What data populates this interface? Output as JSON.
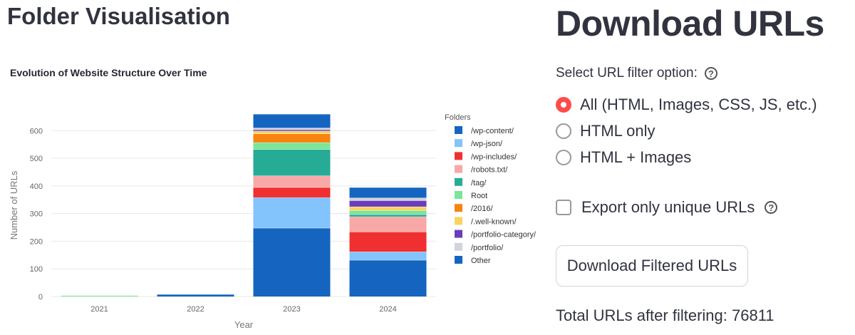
{
  "left": {
    "title": "Folder Visualisation",
    "chart_title": "Evolution of Website Structure Over Time"
  },
  "chart_data": {
    "type": "bar",
    "stacked": true,
    "title": "Evolution of Website Structure Over Time",
    "xlabel": "Year",
    "ylabel": "Number of URLs",
    "categories": [
      "2021",
      "2022",
      "2023",
      "2024"
    ],
    "ylim": [
      0,
      660
    ],
    "yticks": [
      0,
      100,
      200,
      300,
      400,
      500,
      600
    ],
    "grid": true,
    "legend_title": "Folders",
    "legend_position": "right",
    "series": [
      {
        "name": "/wp-content/",
        "color": "#1565c0",
        "values": [
          0,
          8,
          248,
          132
        ]
      },
      {
        "name": "/wp-json/",
        "color": "#82c4fb",
        "values": [
          0,
          0,
          110,
          30
        ]
      },
      {
        "name": "/wp-includes/",
        "color": "#f03030",
        "values": [
          0,
          0,
          37,
          72
        ]
      },
      {
        "name": "/robots.txt/",
        "color": "#f9a8a8",
        "values": [
          0,
          0,
          42,
          55
        ]
      },
      {
        "name": "/tag/",
        "color": "#26ab97",
        "values": [
          0,
          0,
          95,
          8
        ]
      },
      {
        "name": "Root",
        "color": "#7be59a",
        "values": [
          4,
          0,
          25,
          14
        ]
      },
      {
        "name": "/2016/",
        "color": "#f8840f",
        "values": [
          0,
          0,
          32,
          0
        ]
      },
      {
        "name": "/.well-known/",
        "color": "#f9d262",
        "values": [
          0,
          0,
          10,
          14
        ]
      },
      {
        "name": "/portfolio-category/",
        "color": "#6b3dbd",
        "values": [
          0,
          0,
          5,
          22
        ]
      },
      {
        "name": "/portfolio/",
        "color": "#d0d5dd",
        "values": [
          0,
          0,
          6,
          10
        ]
      },
      {
        "name": "Other",
        "color": "#1565c0",
        "values": [
          0,
          0,
          50,
          38
        ]
      }
    ]
  },
  "right": {
    "title": "Download URLs",
    "filter_label": "Select URL filter option:",
    "options": [
      {
        "label": "All (HTML, Images, CSS, JS, etc.)",
        "selected": true
      },
      {
        "label": "HTML only",
        "selected": false
      },
      {
        "label": "HTML + Images",
        "selected": false
      }
    ],
    "unique_checkbox_label": "Export only unique URLs",
    "unique_checked": false,
    "download_button": "Download Filtered URLs",
    "total_text": "Total URLs after filtering: 76811",
    "accent_color": "#ff4b4b",
    "help_icon": "question-circle-icon"
  }
}
